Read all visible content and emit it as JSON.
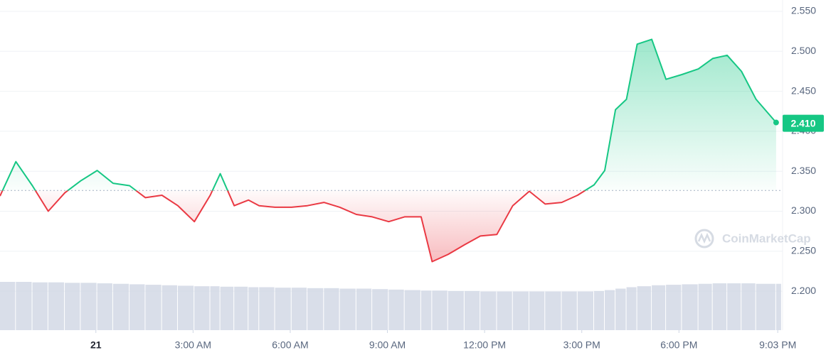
{
  "chart_data": {
    "type": "line",
    "x": [
      -2.96,
      -2.47,
      -1.96,
      -1.47,
      -0.96,
      -0.47,
      0.04,
      0.53,
      1.04,
      1.53,
      2.04,
      2.53,
      3.04,
      3.53,
      3.84,
      4.27,
      4.71,
      5.04,
      5.53,
      6.04,
      6.53,
      7.04,
      7.53,
      8.04,
      8.53,
      9.04,
      9.53,
      10.04,
      10.38,
      10.87,
      11.38,
      11.87,
      12.38,
      12.87,
      13.38,
      13.87,
      14.38,
      14.87,
      15.38,
      15.71,
      16.04,
      16.38,
      16.71,
      17.16,
      17.6,
      18.09,
      18.6,
      19.04,
      19.49,
      19.93,
      20.38,
      21.0
    ],
    "values": [
      2.319,
      2.362,
      2.332,
      2.3,
      2.323,
      2.338,
      2.351,
      2.335,
      2.332,
      2.317,
      2.32,
      2.307,
      2.287,
      2.32,
      2.347,
      2.307,
      2.314,
      2.307,
      2.305,
      2.305,
      2.307,
      2.311,
      2.305,
      2.296,
      2.293,
      2.287,
      2.293,
      2.293,
      2.237,
      2.246,
      2.258,
      2.269,
      2.271,
      2.307,
      2.325,
      2.309,
      2.311,
      2.32,
      2.333,
      2.351,
      2.427,
      2.44,
      2.509,
      2.515,
      2.465,
      2.471,
      2.478,
      2.491,
      2.495,
      2.475,
      2.44,
      2.411
    ],
    "volume": [
      100,
      100,
      99,
      99,
      98,
      98,
      97,
      96,
      95,
      94,
      93,
      92,
      91,
      91,
      90,
      90,
      89,
      89,
      88,
      88,
      87,
      87,
      86,
      86,
      85,
      84,
      83,
      82,
      82,
      81,
      81,
      80,
      80,
      80,
      80,
      80,
      80,
      80,
      81,
      83,
      86,
      89,
      91,
      93,
      94,
      95,
      96,
      97,
      97,
      97,
      96,
      96
    ],
    "up_color": "#16c784",
    "down_color": "#ea3943",
    "baseline": 2.326,
    "current": {
      "value": 2.41,
      "label": "2.410"
    },
    "xlim": [
      -2.96,
      21.2
    ],
    "xticks": [
      {
        "value": 0,
        "label": "21"
      },
      {
        "value": 3,
        "label": "3:00 AM"
      },
      {
        "value": 6,
        "label": "6:00 AM"
      },
      {
        "value": 9,
        "label": "9:00 AM"
      },
      {
        "value": 12,
        "label": "12:00 PM"
      },
      {
        "value": 15,
        "label": "3:00 PM"
      },
      {
        "value": 18,
        "label": "6:00 PM"
      },
      {
        "value": 21.05,
        "label": "9:03 PM"
      }
    ],
    "ylim": [
      2.1513,
      2.5642
    ],
    "yticks": [
      {
        "value": 2.2,
        "label": "2.200"
      },
      {
        "value": 2.25,
        "label": "2.250"
      },
      {
        "value": 2.3,
        "label": "2.300"
      },
      {
        "value": 2.35,
        "label": "2.350"
      },
      {
        "value": 2.4,
        "label": "2.400"
      },
      {
        "value": 2.45,
        "label": "2.450"
      },
      {
        "value": 2.5,
        "label": "2.500"
      },
      {
        "value": 2.55,
        "label": "2.550"
      }
    ],
    "grid": true,
    "watermark": "CoinMarketCap"
  }
}
